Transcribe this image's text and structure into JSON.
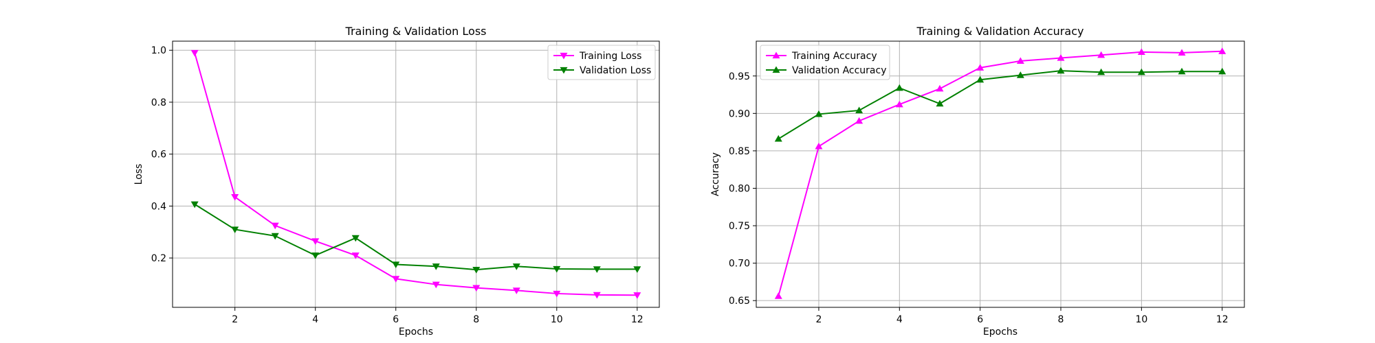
{
  "chart_data": [
    {
      "type": "line",
      "title": "Training & Validation Loss",
      "xlabel": "Epochs",
      "ylabel": "Loss",
      "x": [
        1,
        2,
        3,
        4,
        5,
        6,
        7,
        8,
        9,
        10,
        11,
        12
      ],
      "xlim": [
        0.45,
        12.55
      ],
      "ylim": [
        0.01,
        1.035
      ],
      "xticks": [
        2,
        4,
        6,
        8,
        10,
        12
      ],
      "xtick_labels": [
        "2",
        "4",
        "6",
        "8",
        "10",
        "12"
      ],
      "yticks": [
        0.2,
        0.4,
        0.6,
        0.8,
        1.0
      ],
      "ytick_labels": [
        "0.2",
        "0.4",
        "0.6",
        "0.8",
        "1.0"
      ],
      "grid": true,
      "legend_position": "top-right",
      "series": [
        {
          "name": "Training Loss",
          "color": "#ff00ff",
          "marker": "triangle-down",
          "values": [
            0.99,
            0.435,
            0.325,
            0.265,
            0.21,
            0.12,
            0.098,
            0.085,
            0.075,
            0.063,
            0.058,
            0.057
          ]
        },
        {
          "name": "Validation Loss",
          "color": "#008000",
          "marker": "triangle-down",
          "values": [
            0.407,
            0.31,
            0.285,
            0.21,
            0.277,
            0.175,
            0.168,
            0.155,
            0.168,
            0.158,
            0.157,
            0.157
          ]
        }
      ]
    },
    {
      "type": "line",
      "title": "Training & Validation Accuracy",
      "xlabel": "Epochs",
      "ylabel": "Accuracy",
      "x": [
        1,
        2,
        3,
        4,
        5,
        6,
        7,
        8,
        9,
        10,
        11,
        12
      ],
      "xlim": [
        0.45,
        12.55
      ],
      "ylim": [
        0.641,
        0.9965
      ],
      "xticks": [
        2,
        4,
        6,
        8,
        10,
        12
      ],
      "xtick_labels": [
        "2",
        "4",
        "6",
        "8",
        "10",
        "12"
      ],
      "yticks": [
        0.65,
        0.7,
        0.75,
        0.8,
        0.85,
        0.9,
        0.95
      ],
      "ytick_labels": [
        "0.65",
        "0.70",
        "0.75",
        "0.80",
        "0.85",
        "0.90",
        "0.95"
      ],
      "grid": true,
      "legend_position": "top-left",
      "series": [
        {
          "name": "Training Accuracy",
          "color": "#ff00ff",
          "marker": "triangle-up",
          "values": [
            0.656,
            0.856,
            0.89,
            0.912,
            0.933,
            0.961,
            0.97,
            0.974,
            0.978,
            0.982,
            0.981,
            0.983
          ]
        },
        {
          "name": "Validation Accuracy",
          "color": "#008000",
          "marker": "triangle-up",
          "values": [
            0.866,
            0.899,
            0.904,
            0.934,
            0.913,
            0.945,
            0.951,
            0.957,
            0.955,
            0.955,
            0.956,
            0.956
          ]
        }
      ]
    }
  ]
}
